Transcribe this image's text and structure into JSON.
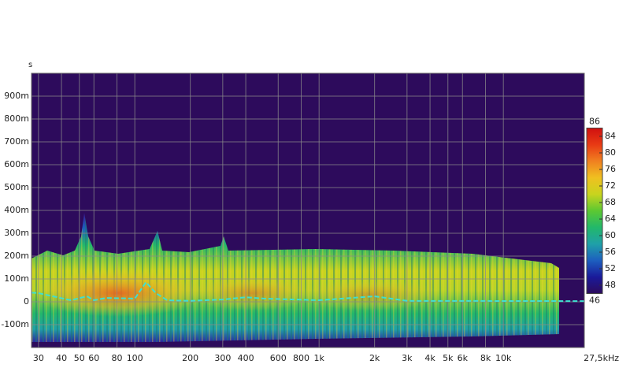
{
  "chart_data": {
    "type": "spectrogram",
    "y_unit": "s",
    "xscale": "log",
    "xlim": [
      27.5,
      27500
    ],
    "xticks": [
      30,
      40,
      50,
      60,
      80,
      100,
      200,
      300,
      400,
      600,
      800,
      {
        "value": 1000,
        "label": "1k"
      },
      {
        "value": 2000,
        "label": "2k"
      },
      {
        "value": 3000,
        "label": "3k"
      },
      {
        "value": 4000,
        "label": "4k"
      },
      {
        "value": 5000,
        "label": "5k"
      },
      {
        "value": 6000,
        "label": "6k"
      },
      {
        "value": 8000,
        "label": "8k"
      },
      {
        "value": 10000,
        "label": "10k"
      },
      {
        "value": 27500,
        "label": "27,5kHz"
      }
    ],
    "ylim": [
      -0.2,
      1.0
    ],
    "yticks": [
      {
        "value": -0.1,
        "label": "-100m"
      },
      0,
      {
        "value": 0.1,
        "label": "100m"
      },
      {
        "value": 0.2,
        "label": "200m"
      },
      {
        "value": 0.3,
        "label": "300m"
      },
      {
        "value": 0.4,
        "label": "400m"
      },
      {
        "value": 0.5,
        "label": "500m"
      },
      {
        "value": 0.6,
        "label": "600m"
      },
      {
        "value": 0.7,
        "label": "700m"
      },
      {
        "value": 0.8,
        "label": "800m"
      },
      {
        "value": 0.9,
        "label": "900m"
      }
    ],
    "grid": true,
    "background": "#2d0b5c",
    "colorbar": {
      "lim": [
        46,
        86
      ],
      "ticks": [
        46,
        48,
        52,
        56,
        60,
        64,
        68,
        72,
        76,
        80,
        84,
        86
      ],
      "colors": [
        "#2d0b5c",
        "#1a1a9a",
        "#1d5fbf",
        "#1fa0a8",
        "#22b86a",
        "#5cc832",
        "#c8d41e",
        "#f0c020",
        "#f08020",
        "#e83a14",
        "#d01010"
      ]
    },
    "line": {
      "color": "#3fe0d0",
      "x": [
        27.5,
        30,
        45,
        55,
        60,
        70,
        100,
        115,
        130,
        150,
        200,
        300,
        400,
        500,
        1000,
        2000,
        3000,
        27500
      ],
      "values": [
        0.04,
        0.038,
        0.007,
        0.024,
        0.007,
        0.017,
        0.014,
        0.086,
        0.038,
        0.007,
        0.004,
        0.01,
        0.02,
        0.014,
        0.007,
        0.024,
        0.004,
        0.003
      ]
    }
  }
}
